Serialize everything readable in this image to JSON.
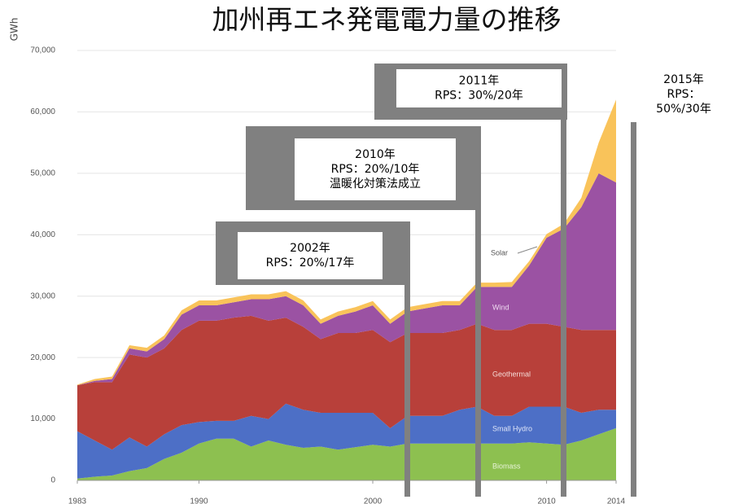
{
  "chart_data": {
    "type": "stacked_area",
    "title": "加州再エネ発電電力量の推移",
    "y_label": "GWh",
    "x": [
      1983,
      1984,
      1985,
      1986,
      1987,
      1988,
      1989,
      1990,
      1991,
      1992,
      1993,
      1994,
      1995,
      1996,
      1997,
      1998,
      1999,
      2000,
      2001,
      2002,
      2003,
      2004,
      2005,
      2006,
      2007,
      2008,
      2009,
      2010,
      2011,
      2012,
      2013,
      2014
    ],
    "series": [
      {
        "name": "Biomass",
        "color": "#8dc050",
        "values": [
          300,
          600,
          800,
          1500,
          2000,
          3500,
          4500,
          6000,
          6800,
          6800,
          5500,
          6500,
          5800,
          5300,
          5500,
          5000,
          5400,
          5800,
          5500,
          6000,
          6000,
          6000,
          6000,
          6000,
          6000,
          6000,
          6200,
          6000,
          5800,
          6500,
          7500,
          8500
        ]
      },
      {
        "name": "Small Hydro",
        "color": "#4d6fc6",
        "values": [
          7700,
          5900,
          4200,
          5500,
          3500,
          4000,
          4500,
          3500,
          2900,
          2900,
          5000,
          3500,
          6700,
          6200,
          5500,
          6000,
          5600,
          5200,
          3000,
          4500,
          4500,
          4500,
          5500,
          6000,
          4500,
          4500,
          5800,
          6000,
          6200,
          4500,
          4000,
          3000
        ]
      },
      {
        "name": "Geothermal",
        "color": "#b8403a",
        "values": [
          7500,
          9500,
          11000,
          13500,
          14500,
          14000,
          15500,
          16500,
          16300,
          16800,
          16300,
          16000,
          14000,
          13500,
          12000,
          13000,
          13000,
          13500,
          14000,
          13500,
          13500,
          13500,
          13000,
          13500,
          14000,
          14000,
          13500,
          13500,
          13000,
          13500,
          13000,
          13000
        ]
      },
      {
        "name": "Wind",
        "color": "#9b52a3",
        "values": [
          0,
          200,
          500,
          1000,
          1000,
          1500,
          2500,
          2500,
          2500,
          2500,
          2700,
          3500,
          3500,
          3500,
          2500,
          2800,
          3500,
          4000,
          3000,
          3500,
          4000,
          4500,
          4000,
          6000,
          7000,
          7000,
          9500,
          14000,
          16000,
          20000,
          25500,
          24000
        ]
      },
      {
        "name": "Solar",
        "color": "#f9c35a",
        "values": [
          100,
          300,
          400,
          500,
          600,
          600,
          700,
          800,
          800,
          800,
          800,
          800,
          800,
          800,
          700,
          700,
          700,
          700,
          700,
          700,
          700,
          700,
          700,
          700,
          700,
          800,
          700,
          600,
          800,
          1500,
          5000,
          13500
        ]
      }
    ],
    "xlim": [
      1983,
      2014
    ],
    "xticks": [
      1983,
      1990,
      2000,
      2010,
      2014
    ],
    "ylim": [
      0,
      70000
    ],
    "yticks": [
      0,
      {
        "value": 10000,
        "label": "10,000"
      },
      {
        "value": 20000,
        "label": "20,000"
      },
      {
        "value": 30000,
        "label": "30,000"
      },
      {
        "value": 40000,
        "label": "40,000"
      },
      {
        "value": 50000,
        "label": "50,000"
      },
      {
        "value": 60000,
        "label": "60,000"
      },
      {
        "value": 70000,
        "label": "70,000"
      }
    ],
    "grid": true,
    "annotations": [
      {
        "lines": [
          "2002年",
          "RPS：20%/17年"
        ]
      },
      {
        "lines": [
          "2010年",
          "RPS：20%/10年",
          "温暖化対策法成立"
        ]
      },
      {
        "lines": [
          "2011年",
          "RPS：30%/20年"
        ]
      },
      {
        "lines": [
          "2015年",
          "RPS：",
          "50%/30年"
        ]
      }
    ]
  }
}
